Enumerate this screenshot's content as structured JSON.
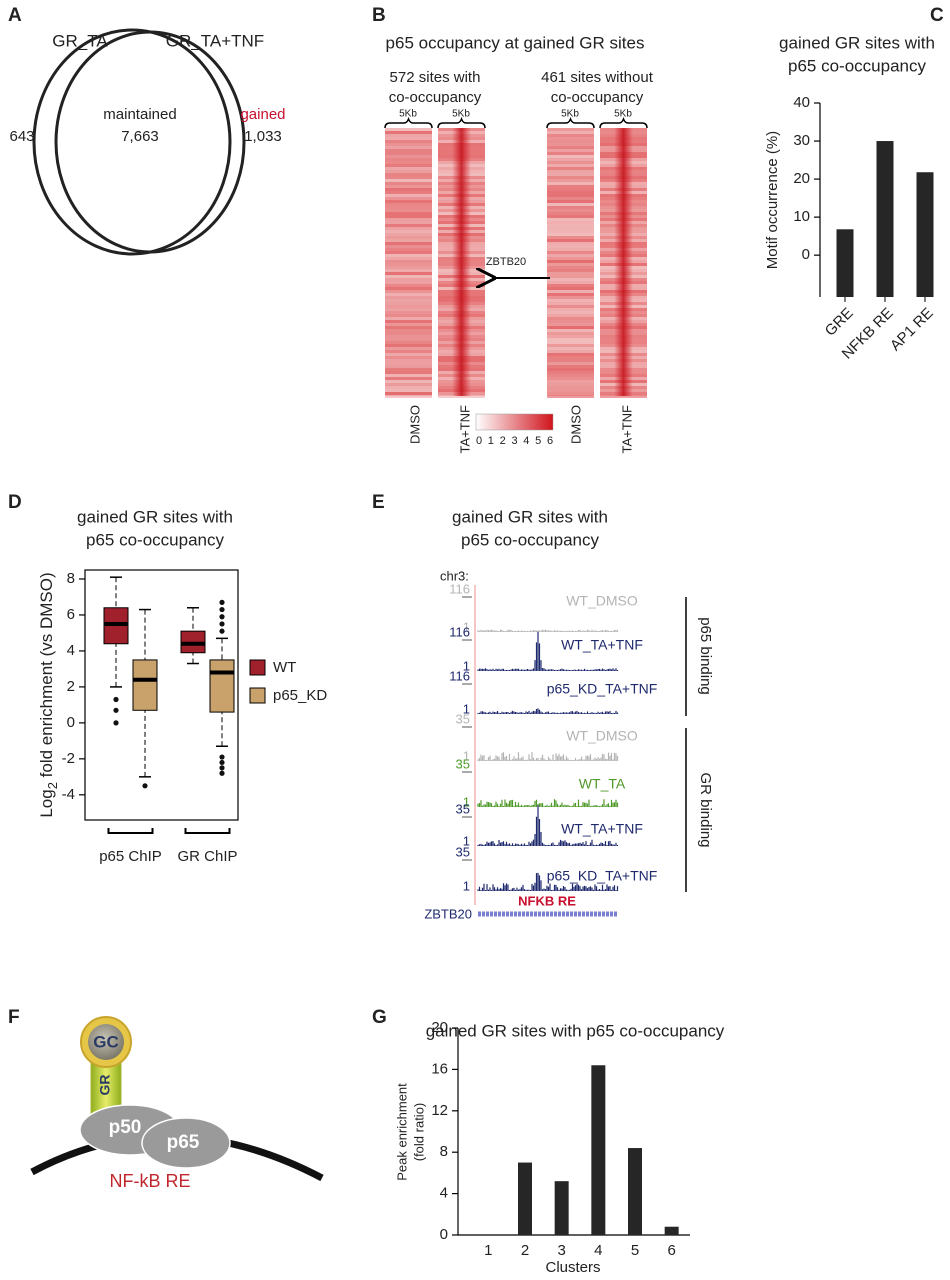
{
  "panels": {
    "A": {
      "letter": "A",
      "sets": [
        "GR_TA",
        "GR_TA+TNF"
      ],
      "maintained_label": "maintained",
      "maintained": "7,663",
      "only_left": "643",
      "gained_label": "gained",
      "gained": "1,033"
    },
    "B": {
      "letter": "B",
      "title": "p65 occupancy at gained GR sites",
      "groups": [
        {
          "lines": [
            "572 sites with",
            "co-occupancy"
          ],
          "windows": [
            "5Kb",
            "5Kb"
          ],
          "columns": [
            "DMSO",
            "TA+TNF"
          ]
        },
        {
          "lines": [
            "461 sites without",
            "co-occupancy"
          ],
          "windows": [
            "5Kb",
            "5Kb"
          ],
          "columns": [
            "DMSO",
            "TA+TNF"
          ]
        }
      ],
      "arrow_label": "ZBTB20",
      "colorbar": [
        0,
        1,
        2,
        3,
        4,
        5,
        6
      ]
    },
    "E": {
      "letter": "E",
      "title": [
        "gained GR sites with",
        "p65 co-occupancy"
      ],
      "locus": "chr3:",
      "tracks": [
        {
          "name": "WT_DMSO",
          "max": "116",
          "min": "1",
          "color": "#b4b4b4"
        },
        {
          "name": "WT_TA+TNF",
          "max": "116",
          "min": "1",
          "color": "#1f2a6e"
        },
        {
          "name": "p65_KD_TA+TNF",
          "max": "116",
          "min": "1",
          "color": "#1f2a6e"
        },
        {
          "name": "WT_DMSO",
          "max": "35",
          "min": "1",
          "color": "#b4b4b4"
        },
        {
          "name": "WT_TA",
          "max": "35",
          "min": "1",
          "color": "#4f9a2a"
        },
        {
          "name": "WT_TA+TNF",
          "max": "35",
          "min": "1",
          "color": "#1f2a6e"
        },
        {
          "name": "p65_KD_TA+TNF",
          "max": "35",
          "min": "1",
          "color": "#1f2a6e"
        }
      ],
      "groups": [
        "p65 binding",
        "GR binding"
      ],
      "motif": "NFKB RE",
      "gene": "ZBTB20"
    },
    "F": {
      "letter": "F",
      "ligand": "GC",
      "receptor": "GR",
      "subunits": [
        "p50",
        "p65"
      ],
      "element": "NF-kB RE"
    }
  },
  "chart_data": [
    {
      "type": "bar",
      "letter": "C",
      "title": [
        "gained GR sites with",
        "p65 co-occupancy"
      ],
      "ylabel": "Motif occurrence (%)",
      "categories": [
        "GRE",
        "NFKB RE",
        "AP1 RE"
      ],
      "values": [
        6.8,
        30,
        21.8
      ],
      "color": "#262626",
      "ylim": [
        -11,
        40
      ],
      "yticks": [
        0,
        10,
        20,
        30,
        40
      ]
    },
    {
      "type": "box",
      "letter": "D",
      "title": [
        "gained GR sites with",
        "p65 co-occupancy"
      ],
      "ylabel": [
        "Log",
        "2",
        " fold enrichment (vs DMSO)"
      ],
      "categories": [
        "p65 ChIP",
        "GR ChIP"
      ],
      "series": [
        {
          "name": "WT",
          "color": "#a0202c",
          "boxes": [
            {
              "whislo": 2.0,
              "q1": 4.4,
              "med": 5.5,
              "q3": 6.4,
              "whishi": 8.1,
              "fliers": [
                1.3,
                0.7,
                0.0
              ]
            },
            {
              "whislo": 3.3,
              "q1": 3.9,
              "med": 4.4,
              "q3": 5.1,
              "whishi": 6.4,
              "fliers": []
            }
          ]
        },
        {
          "name": "p65_KD",
          "color": "#c8a26a",
          "boxes": [
            {
              "whislo": -3.0,
              "q1": 0.7,
              "med": 2.4,
              "q3": 3.5,
              "whishi": 6.3,
              "fliers": [
                -3.5
              ]
            },
            {
              "whislo": -1.3,
              "q1": 0.6,
              "med": 2.8,
              "q3": 3.5,
              "whishi": 4.7,
              "fliers": [
                5.1,
                5.5,
                5.9,
                6.3,
                6.7,
                -1.9,
                -2.2,
                -2.5,
                -2.8
              ]
            }
          ]
        }
      ],
      "ylim": [
        -5.4,
        8.5
      ],
      "yticks": [
        -4,
        -2,
        0,
        2,
        4,
        6,
        8
      ]
    },
    {
      "type": "bar",
      "letter": "G",
      "title": [
        "gained GR sites with p65 co-occupancy"
      ],
      "ylabel": [
        "Peak enrichment",
        "(fold ratio)"
      ],
      "xlabel": "Clusters",
      "categories": [
        "1",
        "2",
        "3",
        "4",
        "5",
        "6"
      ],
      "values": [
        0,
        7.0,
        5.2,
        16.4,
        8.4,
        0.8
      ],
      "color": "#262626",
      "ylim": [
        0,
        20
      ],
      "yticks": [
        0,
        4,
        8,
        12,
        16,
        20
      ]
    }
  ]
}
